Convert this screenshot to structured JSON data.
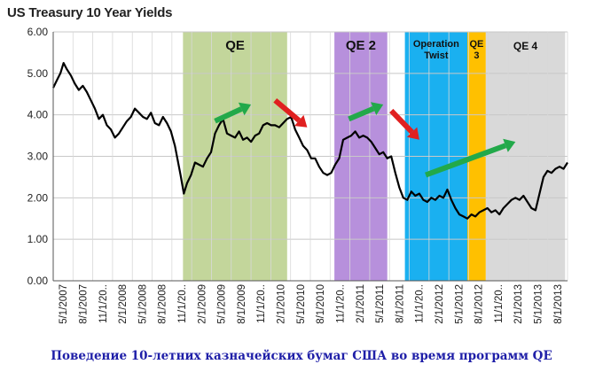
{
  "chart_data": {
    "type": "line",
    "title": "US Treasury 10 Year Yields",
    "xlabel": "",
    "ylabel": "",
    "ylim": [
      0,
      6
    ],
    "y_ticks": [
      "0.00",
      "1.00",
      "2.00",
      "3.00",
      "4.00",
      "5.00",
      "6.00"
    ],
    "x_range": [
      2007.33,
      2013.75
    ],
    "x_tick_labels": [
      "5/1/2007",
      "8/1/2007",
      "11/1/20..",
      "2/1/2008",
      "5/1/2008",
      "8/1/2008",
      "11/1/20..",
      "2/1/2009",
      "5/1/2009",
      "8/1/2009",
      "11/1/20..",
      "2/1/2010",
      "5/1/2010",
      "8/1/2010",
      "11/1/20..",
      "2/1/2011",
      "5/1/2011",
      "8/1/2011",
      "11/1/20..",
      "2/1/2012",
      "5/1/2012",
      "8/1/2012",
      "11/1/20..",
      "2/1/2013",
      "5/1/2013",
      "8/1/2013"
    ],
    "grid": true,
    "line_color": "#000000",
    "series": [
      {
        "name": "10 Year Yield",
        "x": [
          2007.33,
          2007.38,
          2007.42,
          2007.46,
          2007.5,
          2007.55,
          2007.6,
          2007.65,
          2007.7,
          2007.75,
          2007.8,
          2007.85,
          2007.9,
          2007.95,
          2008.0,
          2008.05,
          2008.1,
          2008.15,
          2008.2,
          2008.25,
          2008.3,
          2008.35,
          2008.4,
          2008.45,
          2008.5,
          2008.55,
          2008.6,
          2008.65,
          2008.7,
          2008.75,
          2008.8,
          2008.85,
          2008.88,
          2008.92,
          2008.96,
          2009.0,
          2009.05,
          2009.1,
          2009.15,
          2009.2,
          2009.25,
          2009.3,
          2009.35,
          2009.4,
          2009.45,
          2009.5,
          2009.55,
          2009.6,
          2009.65,
          2009.7,
          2009.75,
          2009.8,
          2009.85,
          2009.9,
          2009.95,
          2010.0,
          2010.05,
          2010.1,
          2010.15,
          2010.2,
          2010.25,
          2010.3,
          2010.35,
          2010.4,
          2010.45,
          2010.5,
          2010.55,
          2010.6,
          2010.65,
          2010.7,
          2010.75,
          2010.8,
          2010.85,
          2010.9,
          2010.95,
          2011.0,
          2011.05,
          2011.1,
          2011.15,
          2011.2,
          2011.25,
          2011.3,
          2011.35,
          2011.4,
          2011.45,
          2011.5,
          2011.55,
          2011.6,
          2011.65,
          2011.7,
          2011.75,
          2011.8,
          2011.85,
          2011.9,
          2011.95,
          2012.0,
          2012.05,
          2012.1,
          2012.15,
          2012.2,
          2012.25,
          2012.3,
          2012.35,
          2012.4,
          2012.45,
          2012.5,
          2012.55,
          2012.6,
          2012.65,
          2012.7,
          2012.75,
          2012.8,
          2012.85,
          2012.9,
          2012.95,
          2013.0,
          2013.05,
          2013.1,
          2013.15,
          2013.2,
          2013.25,
          2013.3,
          2013.35,
          2013.4,
          2013.45,
          2013.5,
          2013.55,
          2013.6,
          2013.65,
          2013.7,
          2013.75
        ],
        "values": [
          4.65,
          4.85,
          5.0,
          5.25,
          5.1,
          4.95,
          4.75,
          4.6,
          4.7,
          4.55,
          4.35,
          4.15,
          3.9,
          4.0,
          3.75,
          3.65,
          3.45,
          3.55,
          3.7,
          3.85,
          3.95,
          4.15,
          4.05,
          3.95,
          3.9,
          4.05,
          3.8,
          3.75,
          3.95,
          3.8,
          3.6,
          3.25,
          2.95,
          2.55,
          2.1,
          2.35,
          2.55,
          2.85,
          2.8,
          2.75,
          2.95,
          3.1,
          3.55,
          3.75,
          3.9,
          3.55,
          3.5,
          3.45,
          3.6,
          3.4,
          3.45,
          3.35,
          3.5,
          3.55,
          3.75,
          3.8,
          3.75,
          3.75,
          3.7,
          3.8,
          3.9,
          3.95,
          3.65,
          3.45,
          3.25,
          3.15,
          2.95,
          2.95,
          2.75,
          2.6,
          2.55,
          2.6,
          2.8,
          2.95,
          3.4,
          3.45,
          3.5,
          3.6,
          3.45,
          3.5,
          3.45,
          3.35,
          3.2,
          3.05,
          3.1,
          2.95,
          3.0,
          2.6,
          2.25,
          2.0,
          1.95,
          2.15,
          2.05,
          2.1,
          1.95,
          1.9,
          2.0,
          1.95,
          2.05,
          2.0,
          2.2,
          1.95,
          1.75,
          1.6,
          1.55,
          1.5,
          1.6,
          1.55,
          1.65,
          1.7,
          1.75,
          1.65,
          1.7,
          1.6,
          1.75,
          1.85,
          1.95,
          2.0,
          1.95,
          2.05,
          1.9,
          1.75,
          1.7,
          2.1,
          2.5,
          2.65,
          2.6,
          2.7,
          2.75,
          2.7,
          2.85
        ]
      }
    ],
    "bands": [
      {
        "label": "QE",
        "start": 2008.95,
        "end": 2010.25,
        "color": "#c3d69b"
      },
      {
        "label": "QE 2",
        "start": 2010.84,
        "end": 2011.5,
        "color": "#b790dc"
      },
      {
        "label": "Operation Twist",
        "start": 2011.72,
        "end": 2012.5,
        "color": "#1ab0f0"
      },
      {
        "label": "QE 3",
        "start": 2012.5,
        "end": 2012.73,
        "color": "#ffc000"
      },
      {
        "label": "QE 4",
        "start": 2012.73,
        "end": 2013.72,
        "color": "#d9d9d9"
      }
    ],
    "annotations": [
      {
        "type": "arrow",
        "color": "#22a94a",
        "from": [
          2009.35,
          3.85
        ],
        "to": [
          2009.8,
          4.25
        ]
      },
      {
        "type": "arrow",
        "color": "#e02020",
        "from": [
          2010.1,
          4.35
        ],
        "to": [
          2010.5,
          3.7
        ]
      },
      {
        "type": "arrow",
        "color": "#22a94a",
        "from": [
          2011.02,
          3.9
        ],
        "to": [
          2011.45,
          4.25
        ]
      },
      {
        "type": "arrow",
        "color": "#e02020",
        "from": [
          2011.55,
          4.1
        ],
        "to": [
          2011.9,
          3.4
        ]
      },
      {
        "type": "arrow",
        "color": "#22a94a",
        "from": [
          2011.98,
          2.55
        ],
        "to": [
          2013.1,
          3.35
        ]
      }
    ]
  },
  "caption": "Поведение 10-летних казначейских бумаг США во время программ QE"
}
